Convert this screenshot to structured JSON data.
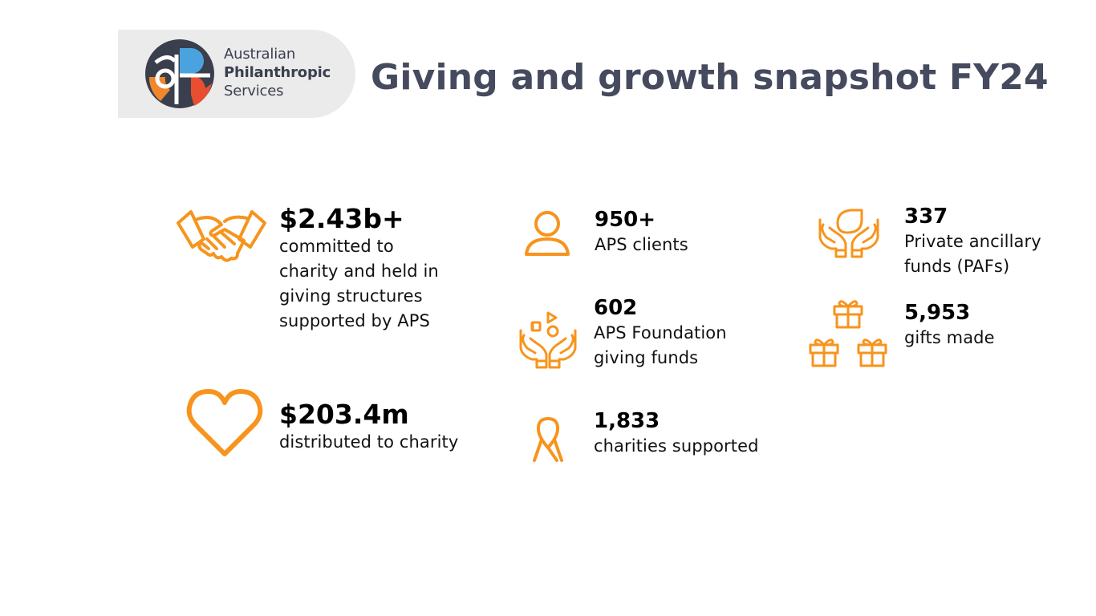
{
  "brand": {
    "line1": "Australian",
    "line2": "Philanthropic",
    "line3": "Services",
    "colors": {
      "navy": "#3a3f4d",
      "blue": "#4aa3df",
      "orange": "#f0882b",
      "red": "#e84e2f",
      "pill": "#ebebeb"
    }
  },
  "title": "Giving and growth snapshot FY24",
  "accent_color": "#f7941d",
  "stats": {
    "committed": {
      "icon": "handshake-icon",
      "value": "$2.43b+",
      "label_lines": [
        "committed to",
        "charity and held in",
        "giving structures",
        "supported by APS"
      ]
    },
    "distributed": {
      "icon": "heart-icon",
      "value": "$203.4m",
      "label_lines": [
        "distributed to charity"
      ]
    },
    "clients": {
      "icon": "person-icon",
      "value": "950+",
      "label_lines": [
        "APS clients"
      ]
    },
    "foundation": {
      "icon": "hands-with-shapes-icon",
      "value": "602",
      "label_lines": [
        "APS Foundation",
        "giving funds"
      ]
    },
    "charities": {
      "icon": "ribbon-icon",
      "value": "1,833",
      "label_lines": [
        "charities supported"
      ]
    },
    "pafs": {
      "icon": "hands-with-leaf-icon",
      "value": "337",
      "label_lines": [
        "Private ancillary",
        "funds (PAFs)"
      ]
    },
    "gifts": {
      "icon": "gifts-icon",
      "value": "5,953",
      "label_lines": [
        "gifts made"
      ]
    }
  }
}
